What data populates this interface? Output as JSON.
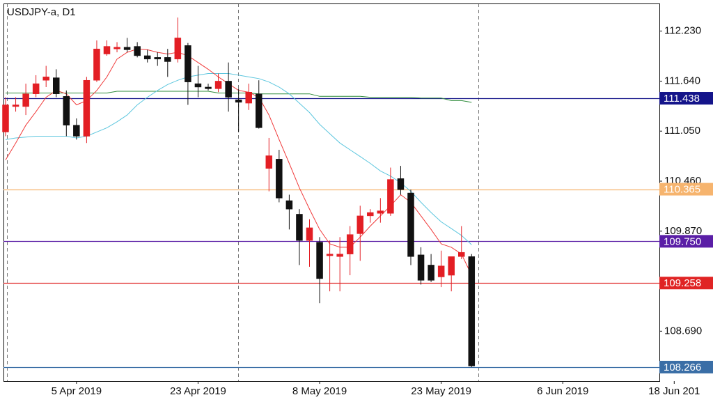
{
  "chart_data": {
    "type": "candlestick",
    "title": "USDJPY-a, D1",
    "categories": [
      null,
      null,
      null,
      null,
      null,
      null,
      null,
      "5 Apr 2019",
      null,
      null,
      null,
      null,
      null,
      null,
      null,
      null,
      null,
      null,
      null,
      "23 Apr 2019",
      null,
      null,
      null,
      null,
      null,
      null,
      null,
      null,
      null,
      null,
      null,
      "8 May 2019",
      null,
      null,
      null,
      null,
      null,
      null,
      null,
      null,
      null,
      null,
      null,
      "23 May 2019",
      null,
      null,
      null,
      null,
      null,
      null,
      null,
      null,
      null,
      null,
      null,
      "6 Jun 2019",
      null,
      null,
      null,
      null,
      null,
      null,
      null,
      null,
      null,
      null,
      "18 Jun 201"
    ],
    "open": [
      111.04,
      111.34,
      111.34,
      111.49,
      111.65,
      111.68,
      111.46,
      111.12,
      110.99,
      111.65,
      111.96,
      112.02,
      112.04,
      112.05,
      111.94,
      111.92,
      111.92,
      111.9,
      112.06,
      111.61,
      111.57,
      111.55,
      111.64,
      111.42,
      111.38,
      111.49,
      110.61,
      110.72,
      110.23,
      110.07,
      109.76,
      109.74,
      109.58,
      109.57,
      109.6,
      109.84,
      110.05,
      110.08,
      110.08,
      110.49,
      110.32,
      109.59,
      109.47,
      109.33,
      109.35,
      109.57,
      109.57,
      null,
      null,
      null,
      null,
      null,
      null,
      null,
      null,
      null,
      null,
      null,
      null,
      null,
      null,
      null,
      null,
      null,
      null,
      null,
      null
    ],
    "high": [
      111.45,
      111.45,
      111.61,
      111.71,
      111.82,
      111.78,
      111.53,
      111.2,
      111.69,
      112.12,
      112.12,
      112.1,
      112.15,
      112.1,
      112.01,
      111.98,
      112.02,
      112.39,
      112.09,
      111.82,
      111.61,
      111.73,
      111.86,
      111.55,
      111.61,
      111.65,
      110.97,
      110.83,
      110.3,
      110.13,
      110.01,
      109.8,
      109.76,
      109.8,
      109.93,
      110.17,
      110.13,
      110.26,
      110.62,
      110.64,
      110.36,
      109.68,
      109.6,
      109.64,
      109.57,
      109.93,
      109.6,
      null,
      null,
      null,
      null,
      null,
      null,
      null,
      null,
      null,
      null,
      null,
      null,
      null,
      null,
      null,
      null,
      null,
      null,
      null,
      null
    ],
    "low": [
      110.99,
      111.28,
      111.24,
      111.45,
      111.57,
      111.45,
      110.99,
      110.95,
      110.91,
      111.63,
      111.94,
      111.98,
      111.98,
      111.92,
      111.86,
      111.82,
      111.69,
      111.86,
      111.36,
      111.45,
      111.53,
      111.51,
      111.28,
      111.04,
      111.3,
      111.08,
      110.34,
      110.21,
      109.89,
      109.47,
      109.45,
      109.02,
      109.16,
      109.16,
      109.35,
      109.52,
      109.97,
      109.97,
      110.05,
      110.3,
      109.47,
      109.24,
      109.27,
      109.21,
      109.16,
      109.54,
      108.266,
      null,
      null,
      null,
      null,
      null,
      null,
      null,
      null,
      null,
      null,
      null,
      null,
      null,
      null,
      null,
      null,
      null,
      null,
      null,
      null
    ],
    "close": [
      111.36,
      111.36,
      111.49,
      111.61,
      111.69,
      111.49,
      111.12,
      110.99,
      111.65,
      112.02,
      112.05,
      112.04,
      112.01,
      111.94,
      111.9,
      111.9,
      111.87,
      112.15,
      111.63,
      111.57,
      111.55,
      111.64,
      111.45,
      111.39,
      111.51,
      111.09,
      110.76,
      110.26,
      110.13,
      109.76,
      109.91,
      109.31,
      109.6,
      109.6,
      109.83,
      110.05,
      110.09,
      110.11,
      110.48,
      110.36,
      109.57,
      109.29,
      109.29,
      109.46,
      109.57,
      109.62,
      108.28,
      null,
      null,
      null,
      null,
      null,
      null,
      null,
      null,
      null,
      null,
      null,
      null,
      null,
      null,
      null,
      null,
      null,
      null,
      null,
      null
    ],
    "up_color": "#e31e24",
    "down_color": "#111111",
    "lines": [
      {
        "color": "#2e8b3a",
        "values": [
          111.5,
          111.5,
          111.5,
          111.5,
          111.5,
          111.5,
          111.5,
          111.5,
          111.5,
          111.5,
          111.5,
          111.52,
          111.52,
          111.52,
          111.52,
          111.52,
          111.52,
          111.52,
          111.52,
          111.52,
          111.52,
          111.5,
          111.5,
          111.5,
          111.5,
          111.49,
          111.49,
          111.49,
          111.49,
          111.49,
          111.49,
          111.46,
          111.46,
          111.46,
          111.46,
          111.46,
          111.45,
          111.45,
          111.45,
          111.45,
          111.45,
          111.44,
          111.44,
          111.44,
          111.41,
          111.41,
          111.39,
          null,
          null,
          null,
          null,
          null,
          null,
          null,
          null,
          null,
          null,
          null,
          null,
          null,
          null,
          null,
          null,
          null,
          null,
          null,
          null
        ]
      },
      {
        "color": "#5cc6de",
        "values": [
          110.95,
          110.97,
          110.98,
          110.99,
          110.99,
          110.99,
          110.99,
          110.97,
          110.99,
          111.04,
          111.09,
          111.16,
          111.24,
          111.36,
          111.45,
          111.53,
          111.6,
          111.65,
          111.69,
          111.71,
          111.73,
          111.73,
          111.73,
          111.71,
          111.69,
          111.67,
          111.63,
          111.57,
          111.49,
          111.38,
          111.27,
          111.13,
          111.02,
          110.91,
          110.83,
          110.75,
          110.67,
          110.58,
          110.52,
          110.44,
          110.34,
          110.21,
          110.09,
          109.98,
          109.9,
          109.82,
          109.71,
          null,
          null,
          null,
          null,
          null,
          null,
          null,
          null,
          null,
          null,
          null,
          null,
          null,
          null,
          null,
          null,
          null,
          null,
          null,
          null
        ]
      },
      {
        "color": "#f03a3a",
        "values": [
          110.71,
          110.91,
          111.12,
          111.28,
          111.45,
          111.53,
          111.49,
          111.36,
          111.41,
          111.53,
          111.69,
          111.9,
          111.98,
          112.02,
          112.01,
          111.98,
          111.96,
          111.98,
          111.94,
          111.86,
          111.78,
          111.69,
          111.61,
          111.53,
          111.51,
          111.45,
          111.24,
          110.95,
          110.67,
          110.38,
          110.13,
          109.89,
          109.72,
          109.68,
          109.68,
          109.8,
          109.93,
          110.05,
          110.17,
          110.3,
          110.21,
          110.05,
          109.89,
          109.72,
          109.68,
          109.6,
          109.35,
          null,
          null,
          null,
          null,
          null,
          null,
          null,
          null,
          null,
          null,
          null,
          null,
          null,
          null,
          null,
          null,
          null,
          null,
          null,
          null
        ]
      }
    ],
    "levels": [
      {
        "value": 111.438,
        "color": "#14148a"
      },
      {
        "value": 110.365,
        "color": "#f6b46e"
      },
      {
        "value": 109.75,
        "label": "109.750",
        "color": "#5a1ea6"
      },
      {
        "value": 109.258,
        "color": "#e02424"
      },
      {
        "value": 108.266,
        "color": "#3a6ea6"
      }
    ],
    "ylim": [
      108.101,
      112.556
    ],
    "yticks": [
      {
        "value": 112.23,
        "label": "112.230"
      },
      {
        "value": 111.64,
        "label": "111.640"
      },
      {
        "value": 111.05,
        "label": "111.050"
      },
      {
        "value": 110.46,
        "label": "110.460"
      },
      {
        "value": 109.87,
        "label": "109.870"
      },
      {
        "value": 108.69,
        "label": "108.690"
      }
    ]
  }
}
